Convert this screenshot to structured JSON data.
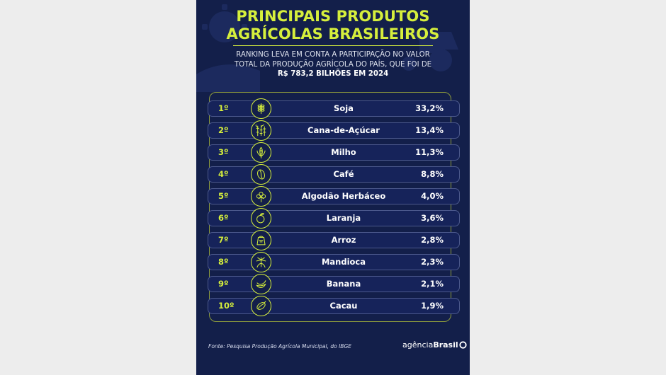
{
  "title_lines": [
    "PRINCIPAIS PRODUTOS",
    "AGRÍCOLAS BRASILEIROS"
  ],
  "subtitle_lines": [
    "RANKING LEVA EM CONTA A PARTICIPAÇÃO NO VALOR",
    "TOTAL DA PRODUÇÃO AGRÍCOLA DO PAÍS, QUE FOI DE"
  ],
  "subtitle_bold": "R$ 783,2 BILHÕES EM 2024",
  "rows": [
    {
      "rank": "1º",
      "crop": "Soja",
      "share": "33,2%",
      "icon": "soy-icon"
    },
    {
      "rank": "2º",
      "crop": "Cana-de-Açúcar",
      "share": "13,4%",
      "icon": "sugarcane-icon"
    },
    {
      "rank": "3º",
      "crop": "Milho",
      "share": "11,3%",
      "icon": "corn-icon"
    },
    {
      "rank": "4º",
      "crop": "Café",
      "share": "8,8%",
      "icon": "coffee-bean-icon"
    },
    {
      "rank": "5º",
      "crop": "Algodão Herbáceo",
      "share": "4,0%",
      "icon": "cotton-icon"
    },
    {
      "rank": "6º",
      "crop": "Laranja",
      "share": "3,6%",
      "icon": "orange-icon"
    },
    {
      "rank": "7º",
      "crop": "Arroz",
      "share": "2,8%",
      "icon": "rice-sack-icon"
    },
    {
      "rank": "8º",
      "crop": "Mandioca",
      "share": "2,3%",
      "icon": "cassava-icon"
    },
    {
      "rank": "9º",
      "crop": "Banana",
      "share": "2,1%",
      "icon": "banana-icon"
    },
    {
      "rank": "10º",
      "crop": "Cacau",
      "share": "1,9%",
      "icon": "cocoa-pod-icon"
    }
  ],
  "source": "Fonte: Pesquisa Produção Agrícola Municipal, do IBGE",
  "logo": {
    "light": "agência",
    "strong": "Brasil"
  },
  "colors": {
    "background": "#131f4a",
    "accent": "#d6ef3c",
    "row_border": "#4b588c"
  }
}
